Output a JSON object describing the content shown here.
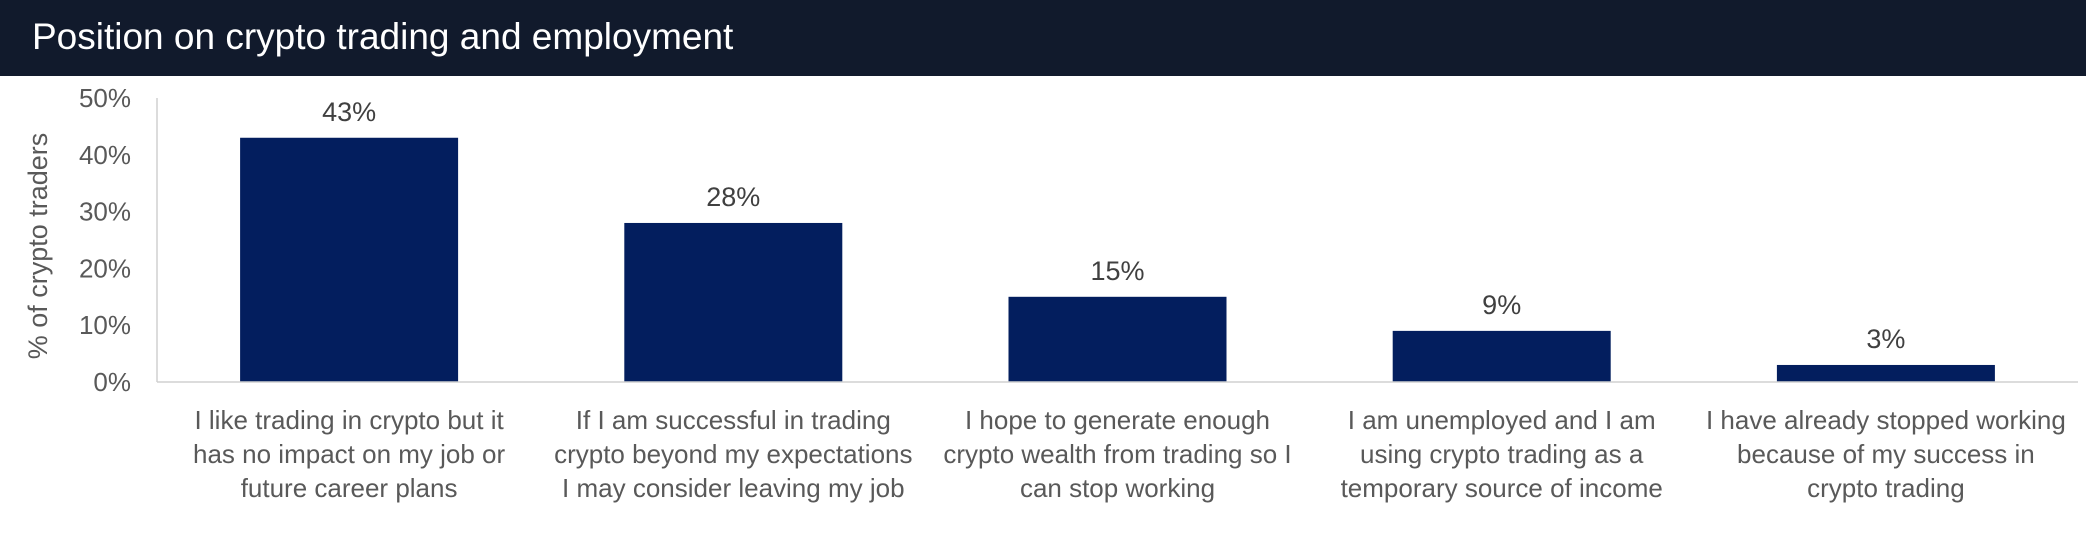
{
  "header": {
    "title": "Position on crypto trading and employment"
  },
  "chart_data": {
    "type": "bar",
    "title": "Position on crypto trading and employment",
    "xlabel": "",
    "ylabel": "% of crypto traders",
    "ylim": [
      0,
      50
    ],
    "yticks": [
      0,
      10,
      20,
      30,
      40,
      50
    ],
    "ytick_labels": [
      "0%",
      "10%",
      "20%",
      "30%",
      "40%",
      "50%"
    ],
    "grid": false,
    "legend": "none",
    "bar_color": "#031e5e",
    "categories": [
      [
        "I like trading in crypto but it",
        "has no impact on my job or",
        "future career plans"
      ],
      [
        "If I am successful in trading",
        "crypto beyond my expectations",
        "I may consider leaving my job"
      ],
      [
        "I hope to generate enough",
        "crypto wealth from trading so I",
        "can stop working"
      ],
      [
        "I am unemployed and I am",
        "using crypto trading as a",
        "temporary source of income"
      ],
      [
        "I have already stopped working",
        "because of my success in",
        "crypto trading"
      ]
    ],
    "values": [
      43,
      28,
      15,
      9,
      3
    ],
    "data_labels": [
      "43%",
      "28%",
      "15%",
      "9%",
      "3%"
    ]
  }
}
